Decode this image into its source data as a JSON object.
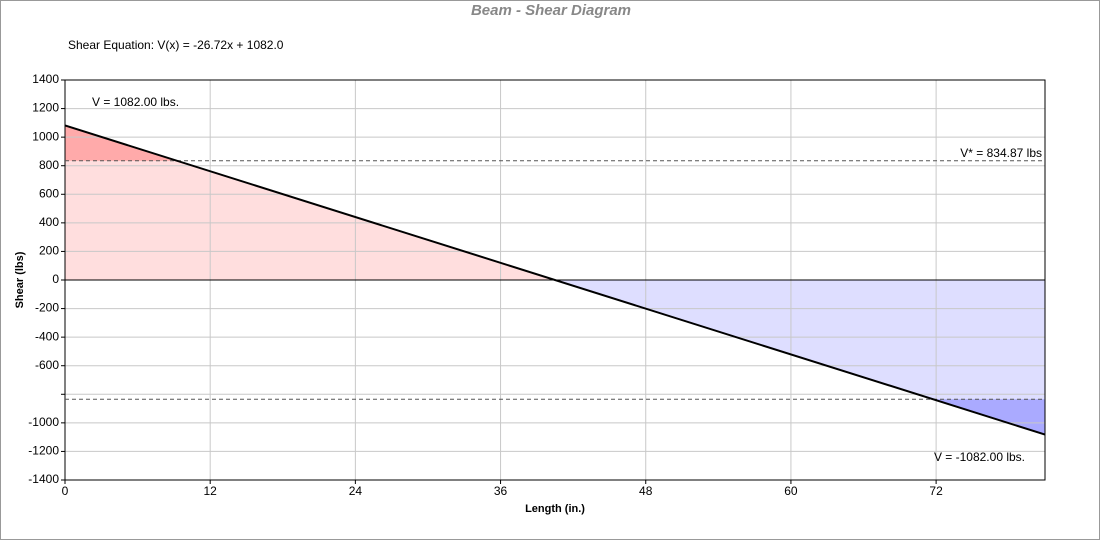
{
  "chart_data": {
    "type": "line",
    "title": "Beam - Shear Diagram",
    "equation": "Shear Equation:  V(x) = -26.72x + 1082.0",
    "x_label": "Length (in.)",
    "y_label": "Shear (lbs)",
    "x": [
      0,
      81
    ],
    "series": [
      {
        "name": "Shear",
        "color": "#000000",
        "values": [
          1082,
          -1082
        ],
        "value_labels": [
          "V = 1082.00 lbs.",
          "V = -1082.00 lbs."
        ]
      }
    ],
    "thresholds": [
      {
        "value": 834.87,
        "label": "V* = 834.87 lbs"
      },
      {
        "value": -834.87
      }
    ],
    "xlim": [
      0,
      81
    ],
    "xticks": [
      0,
      12,
      24,
      36,
      48,
      60,
      72
    ],
    "ylim": [
      -1400,
      1400
    ],
    "yticks": [
      -1400,
      -1200,
      -1000,
      {
        "value": -800,
        "label": null
      },
      -600,
      -400,
      -200,
      0,
      200,
      400,
      600,
      800,
      1000,
      1200,
      1400
    ],
    "grid": true,
    "fill_colors": {
      "positive": "#ffdede",
      "positive_over": "#ffaaaa",
      "negative": "#dedeff",
      "negative_over": "#aaaaff"
    }
  }
}
